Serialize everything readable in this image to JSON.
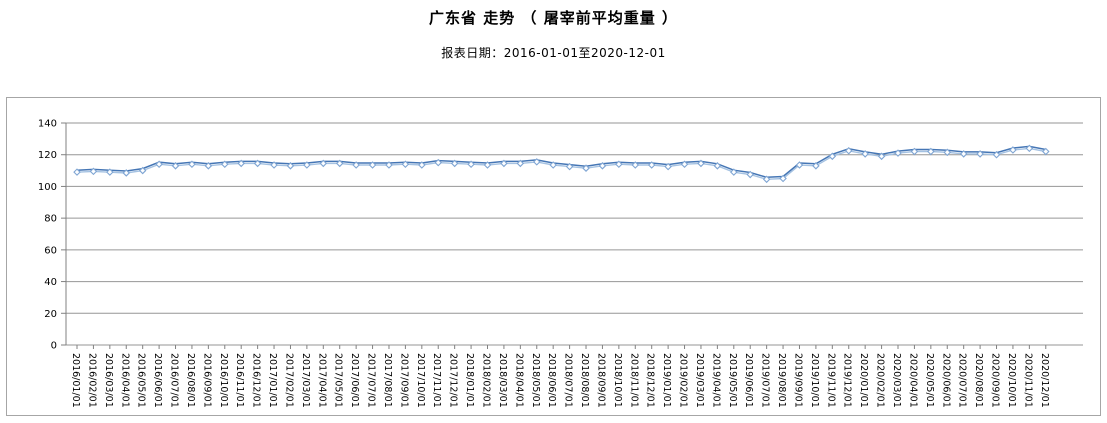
{
  "header": {
    "title": "广东省 走势 （ 屠宰前平均重量 ）",
    "subtitle": "报表日期：2016-01-01至2020-12-01"
  },
  "colors": {
    "line_dark": "#4576b5",
    "line_light": "#a5c2e2",
    "marker_stroke": "#7fa5d3",
    "marker_fill": "#fdfeff",
    "grid": "#969696",
    "axis": "#808080",
    "panel_border": "#a6a6a6",
    "text": "#000000"
  },
  "chart_data": {
    "type": "line",
    "title": "广东省 走势 （ 屠宰前平均重量 ）",
    "subtitle": "报表日期：2016-01-01至2020-12-01",
    "ylabel": "",
    "xlabel": "",
    "ylim": [
      0,
      140
    ],
    "yticks": [
      0,
      20,
      40,
      60,
      80,
      100,
      120,
      140
    ],
    "grid": true,
    "legend": "none",
    "marker": "diamond",
    "x": [
      "2016/01/01",
      "2016/02/01",
      "2016/03/01",
      "2016/04/01",
      "2016/05/01",
      "2016/06/01",
      "2016/07/01",
      "2016/08/01",
      "2016/09/01",
      "2016/10/01",
      "2016/11/01",
      "2016/12/01",
      "2017/01/01",
      "2017/02/01",
      "2017/03/01",
      "2017/04/01",
      "2017/05/01",
      "2017/06/01",
      "2017/07/01",
      "2017/08/01",
      "2017/09/01",
      "2017/10/01",
      "2017/11/01",
      "2017/12/01",
      "2018/01/01",
      "2018/02/01",
      "2018/03/01",
      "2018/04/01",
      "2018/05/01",
      "2018/06/01",
      "2018/07/01",
      "2018/08/01",
      "2018/09/01",
      "2018/10/01",
      "2018/11/01",
      "2018/12/01",
      "2019/01/01",
      "2019/02/01",
      "2019/03/01",
      "2019/04/01",
      "2019/05/01",
      "2019/06/01",
      "2019/07/01",
      "2019/08/01",
      "2019/09/01",
      "2019/10/01",
      "2019/11/01",
      "2019/12/01",
      "2020/01/01",
      "2020/02/01",
      "2020/03/01",
      "2020/04/01",
      "2020/05/01",
      "2020/06/01",
      "2020/07/01",
      "2020/08/01",
      "2020/09/01",
      "2020/10/01",
      "2020/11/01",
      "2020/12/01"
    ],
    "series": [
      {
        "name": "屠宰前平均重量",
        "values": [
          109,
          109.5,
          109,
          108.5,
          110,
          114,
          113,
          114,
          113,
          114,
          114.5,
          114.5,
          113.5,
          113,
          113.5,
          114.5,
          114.5,
          113.5,
          113.5,
          113.5,
          114,
          113.5,
          115,
          114.5,
          114,
          113.5,
          114.5,
          114.5,
          115.5,
          113.5,
          112.5,
          111.5,
          113,
          114,
          113.5,
          113.5,
          112.5,
          114,
          114.5,
          113,
          109,
          107.5,
          104.5,
          105,
          113.5,
          113,
          119,
          122.5,
          120.5,
          119,
          121,
          122,
          122,
          121.5,
          120.5,
          120.5,
          120,
          123,
          124,
          122
        ]
      }
    ]
  }
}
